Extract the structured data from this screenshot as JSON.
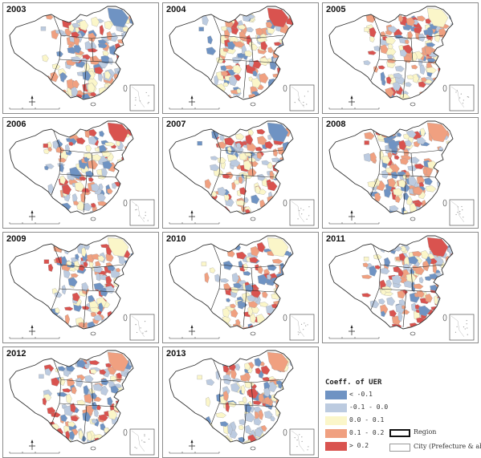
{
  "panels": [
    {
      "year": "2003",
      "pattern": "a"
    },
    {
      "year": "2004",
      "pattern": "b"
    },
    {
      "year": "2005",
      "pattern": "c"
    },
    {
      "year": "2006",
      "pattern": "d"
    },
    {
      "year": "2007",
      "pattern": "e"
    },
    {
      "year": "2008",
      "pattern": "f"
    },
    {
      "year": "2009",
      "pattern": "g"
    },
    {
      "year": "2010",
      "pattern": "h"
    },
    {
      "year": "2011",
      "pattern": "i"
    },
    {
      "year": "2012",
      "pattern": "j"
    },
    {
      "year": "2013",
      "pattern": "k"
    }
  ],
  "legend": {
    "title": "Coeff. of UER",
    "classes": [
      {
        "label": "< -0.1",
        "color": "#6f93c3"
      },
      {
        "label": "-0.1 - 0.0",
        "color": "#bccbe0"
      },
      {
        "label": "0.0 - 0.1",
        "color": "#fbf6c9"
      },
      {
        "label": "0.1 - 0.2",
        "color": "#f0a080"
      },
      {
        "label": "> 0.2",
        "color": "#d9534f"
      }
    ],
    "boundaries": [
      {
        "label": "Region",
        "stroke": "#111111",
        "weight": "thick"
      },
      {
        "label": "City (Prefecture & above)",
        "stroke": "#999999",
        "weight": "thin"
      }
    ]
  }
}
